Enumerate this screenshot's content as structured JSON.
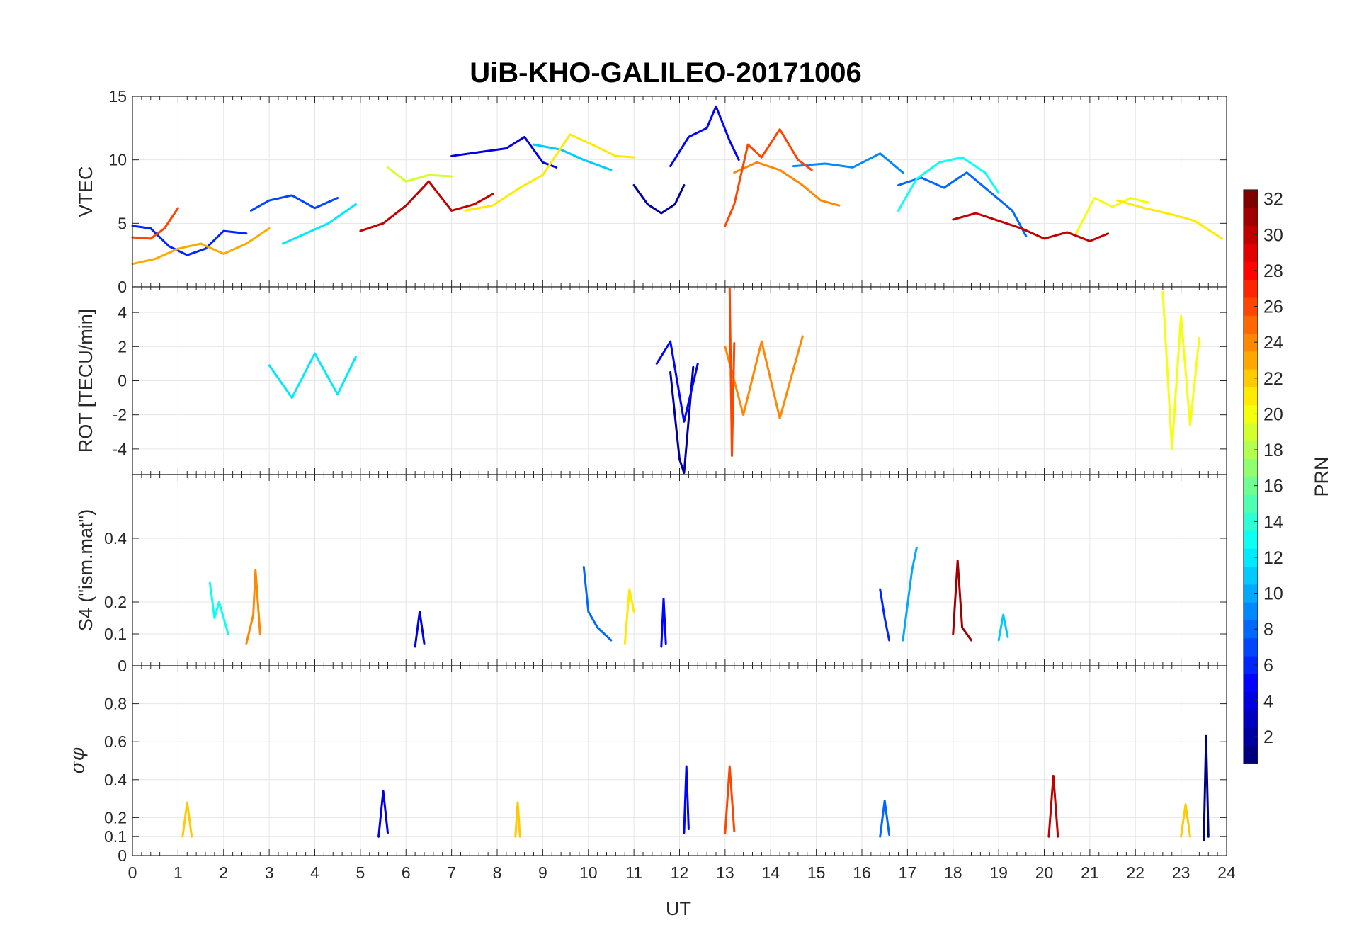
{
  "title": "UiB-KHO-GALILEO-20171006",
  "chart_data": {
    "type": "line",
    "title": "UiB-KHO-GALILEO-20171006",
    "xlabel": "UT",
    "xlim": [
      0,
      24
    ],
    "x_ticks": [
      "0",
      "1",
      "2",
      "3",
      "4",
      "5",
      "6",
      "7",
      "8",
      "9",
      "10",
      "11",
      "12",
      "13",
      "14",
      "15",
      "16",
      "17",
      "18",
      "19",
      "20",
      "21",
      "22",
      "23",
      "24"
    ],
    "grid": true,
    "colorbar": {
      "label": "PRN",
      "range": [
        1,
        32
      ],
      "ticks": [
        "2",
        "4",
        "6",
        "8",
        "10",
        "12",
        "14",
        "16",
        "18",
        "20",
        "22",
        "24",
        "26",
        "28",
        "30",
        "32"
      ],
      "colormap": "jet",
      "placement": "right"
    },
    "panels": [
      {
        "ylabel": "VTEC",
        "ylim": [
          0,
          15
        ],
        "y_ticks": [
          "0",
          "5",
          "10",
          "15"
        ],
        "series": [
          {
            "prn": 2,
            "x": [
              11.0,
              11.3,
              11.6,
              11.9,
              12.1
            ],
            "y": [
              8.0,
              6.5,
              5.8,
              6.5,
              8.0
            ]
          },
          {
            "prn": 4,
            "x": [
              7.0,
              7.6,
              8.2,
              8.6,
              9.0,
              9.3
            ],
            "y": [
              10.3,
              10.6,
              10.9,
              11.8,
              9.8,
              9.4
            ]
          },
          {
            "prn": 5,
            "x": [
              11.8,
              12.2,
              12.6,
              12.8,
              13.1,
              13.3
            ],
            "y": [
              9.5,
              11.8,
              12.5,
              14.2,
              11.5,
              10.0
            ]
          },
          {
            "prn": 6,
            "x": [
              0.0,
              0.4,
              0.8,
              1.2,
              1.6,
              2.0,
              2.5
            ],
            "y": [
              4.8,
              4.6,
              3.2,
              2.5,
              3.0,
              4.4,
              4.2
            ]
          },
          {
            "prn": 7,
            "x": [
              2.6,
              3.0,
              3.5,
              4.0,
              4.5
            ],
            "y": [
              6.0,
              6.8,
              7.2,
              6.2,
              7.0
            ]
          },
          {
            "prn": 8,
            "x": [
              16.8,
              17.3,
              17.8,
              18.3,
              18.8,
              19.3,
              19.6
            ],
            "y": [
              8.0,
              8.6,
              7.8,
              9.0,
              7.5,
              6.0,
              4.0
            ]
          },
          {
            "prn": 9,
            "x": [
              14.5,
              15.2,
              15.8,
              16.4,
              16.9
            ],
            "y": [
              9.5,
              9.7,
              9.4,
              10.5,
              9.0
            ]
          },
          {
            "prn": 11,
            "x": [
              8.8,
              9.4,
              9.9,
              10.5
            ],
            "y": [
              11.2,
              10.8,
              10.0,
              9.2
            ]
          },
          {
            "prn": 12,
            "x": [
              3.3,
              3.8,
              4.3,
              4.9
            ],
            "y": [
              3.4,
              4.2,
              5.0,
              6.5
            ]
          },
          {
            "prn": 13,
            "x": [
              16.8,
              17.2,
              17.7,
              18.2,
              18.7,
              19.0
            ],
            "y": [
              6.0,
              8.5,
              9.8,
              10.2,
              9.0,
              7.4
            ]
          },
          {
            "prn": 19,
            "x": [
              5.6,
              6.0,
              6.5,
              7.0
            ],
            "y": [
              9.4,
              8.3,
              8.8,
              8.7
            ]
          },
          {
            "prn": 20,
            "x": [
              20.7,
              21.1,
              21.5,
              21.9,
              22.3
            ],
            "y": [
              4.2,
              7.0,
              6.3,
              7.0,
              6.6
            ]
          },
          {
            "prn": 21,
            "x": [
              7.3,
              7.9,
              8.5,
              9.0,
              9.6,
              10.2,
              10.6,
              11.0
            ],
            "y": [
              6.0,
              6.4,
              7.8,
              8.8,
              12.0,
              11.0,
              10.3,
              10.2
            ]
          },
          {
            "prn": 21,
            "x": [
              21.6,
              22.2,
              22.8,
              23.3,
              23.9
            ],
            "y": [
              6.8,
              6.2,
              5.7,
              5.2,
              3.8
            ]
          },
          {
            "prn": 23,
            "x": [
              0.0,
              0.5,
              1.0,
              1.5,
              2.0,
              2.5,
              3.0
            ],
            "y": [
              1.8,
              2.2,
              3.0,
              3.4,
              2.6,
              3.4,
              4.6
            ]
          },
          {
            "prn": 24,
            "x": [
              13.2,
              13.7,
              14.2,
              14.7,
              15.1,
              15.5
            ],
            "y": [
              9.0,
              9.8,
              9.2,
              8.0,
              6.8,
              6.4
            ]
          },
          {
            "prn": 26,
            "x": [
              0.0,
              0.4,
              0.7,
              1.0
            ],
            "y": [
              3.9,
              3.8,
              4.6,
              6.2
            ]
          },
          {
            "prn": 26,
            "x": [
              13.0,
              13.2,
              13.5,
              13.8,
              14.2,
              14.6,
              14.9
            ],
            "y": [
              4.8,
              6.5,
              11.2,
              10.2,
              12.4,
              10.0,
              9.2
            ]
          },
          {
            "prn": 30,
            "x": [
              5.0,
              5.5,
              6.0,
              6.5,
              7.0,
              7.5,
              7.9
            ],
            "y": [
              4.4,
              5.0,
              6.4,
              8.3,
              6.0,
              6.5,
              7.3
            ]
          },
          {
            "prn": 30,
            "x": [
              18.0,
              18.5,
              19.0,
              19.5,
              20.0,
              20.5,
              21.0,
              21.4
            ],
            "y": [
              5.3,
              5.8,
              5.2,
              4.6,
              3.8,
              4.3,
              3.6,
              4.2
            ]
          }
        ]
      },
      {
        "ylabel": "ROT [TECU/min]",
        "ylim": [
          -5.5,
          5.5
        ],
        "y_ticks": [
          "-4",
          "-2",
          "0",
          "2",
          "4"
        ],
        "series": [
          {
            "prn": 2,
            "x": [
              11.8,
              12.0,
              12.1,
              12.3
            ],
            "y": [
              0.5,
              -4.6,
              -5.4,
              0.8
            ]
          },
          {
            "prn": 5,
            "x": [
              11.5,
              11.8,
              12.1,
              12.4
            ],
            "y": [
              1.0,
              2.3,
              -2.4,
              1.0
            ]
          },
          {
            "prn": 12,
            "x": [
              3.0,
              3.5,
              4.0,
              4.5,
              4.9
            ],
            "y": [
              0.9,
              -1.0,
              1.6,
              -0.8,
              1.4
            ]
          },
          {
            "prn": 20,
            "x": [
              22.6,
              22.8,
              23.0,
              23.2,
              23.4
            ],
            "y": [
              5.2,
              -4.0,
              3.8,
              -2.6,
              2.5
            ]
          },
          {
            "prn": 24,
            "x": [
              13.0,
              13.4,
              13.8,
              14.2,
              14.7
            ],
            "y": [
              2.0,
              -2.0,
              2.3,
              -2.2,
              2.6
            ]
          },
          {
            "prn": 26,
            "x": [
              13.1,
              13.15,
              13.2
            ],
            "y": [
              5.4,
              -4.4,
              2.2
            ]
          }
        ]
      },
      {
        "ylabel": "S4 (\"ism.mat\")",
        "ylim": [
          0,
          0.6
        ],
        "y_ticks": [
          "0",
          "0.1",
          "0.2",
          "0.4"
        ],
        "series": [
          {
            "prn": 4,
            "x": [
              6.2,
              6.3,
              6.4
            ],
            "y": [
              0.06,
              0.17,
              0.07
            ]
          },
          {
            "prn": 5,
            "x": [
              11.6,
              11.65,
              11.7
            ],
            "y": [
              0.06,
              0.21,
              0.07
            ]
          },
          {
            "prn": 6,
            "x": [
              16.4,
              16.5,
              16.6
            ],
            "y": [
              0.24,
              0.15,
              0.08
            ]
          },
          {
            "prn": 8,
            "x": [
              9.9,
              10.0,
              10.2,
              10.5
            ],
            "y": [
              0.31,
              0.17,
              0.12,
              0.08
            ]
          },
          {
            "prn": 10,
            "x": [
              16.9,
              17.1,
              17.2
            ],
            "y": [
              0.08,
              0.3,
              0.37
            ]
          },
          {
            "prn": 11,
            "x": [
              19.0,
              19.1,
              19.2
            ],
            "y": [
              0.08,
              0.16,
              0.09
            ]
          },
          {
            "prn": 13,
            "x": [
              1.7,
              1.8,
              1.9,
              2.1
            ],
            "y": [
              0.26,
              0.15,
              0.2,
              0.1
            ]
          },
          {
            "prn": 21,
            "x": [
              10.8,
              10.9,
              11.0
            ],
            "y": [
              0.07,
              0.24,
              0.17
            ]
          },
          {
            "prn": 24,
            "x": [
              2.5,
              2.65,
              2.7,
              2.8
            ],
            "y": [
              0.07,
              0.16,
              0.3,
              0.1
            ]
          },
          {
            "prn": 31,
            "x": [
              18.0,
              18.1,
              18.2,
              18.4
            ],
            "y": [
              0.1,
              0.33,
              0.12,
              0.08
            ]
          }
        ]
      },
      {
        "ylabel": "σφ",
        "ylim": [
          0,
          1
        ],
        "y_ticks": [
          "0",
          "0.1",
          "0.2",
          "0.4",
          "0.6",
          "0.8"
        ],
        "series": [
          {
            "prn": 1,
            "x": [
              23.5,
              23.55,
              23.6
            ],
            "y": [
              0.08,
              0.63,
              0.1
            ]
          },
          {
            "prn": 4,
            "x": [
              5.4,
              5.5,
              5.6
            ],
            "y": [
              0.1,
              0.34,
              0.12
            ]
          },
          {
            "prn": 5,
            "x": [
              12.1,
              12.15,
              12.2
            ],
            "y": [
              0.12,
              0.47,
              0.14
            ]
          },
          {
            "prn": 8,
            "x": [
              16.4,
              16.5,
              16.6
            ],
            "y": [
              0.1,
              0.29,
              0.11
            ]
          },
          {
            "prn": 22,
            "x": [
              1.1,
              1.2,
              1.3
            ],
            "y": [
              0.1,
              0.28,
              0.1
            ]
          },
          {
            "prn": 22,
            "x": [
              8.4,
              8.45,
              8.5
            ],
            "y": [
              0.1,
              0.28,
              0.1
            ]
          },
          {
            "prn": 22,
            "x": [
              23.0,
              23.1,
              23.2
            ],
            "y": [
              0.1,
              0.27,
              0.1
            ]
          },
          {
            "prn": 26,
            "x": [
              13.0,
              13.1,
              13.2
            ],
            "y": [
              0.12,
              0.47,
              0.13
            ]
          },
          {
            "prn": 30,
            "x": [
              20.1,
              20.2,
              20.3
            ],
            "y": [
              0.1,
              0.42,
              0.1
            ]
          }
        ]
      }
    ]
  }
}
